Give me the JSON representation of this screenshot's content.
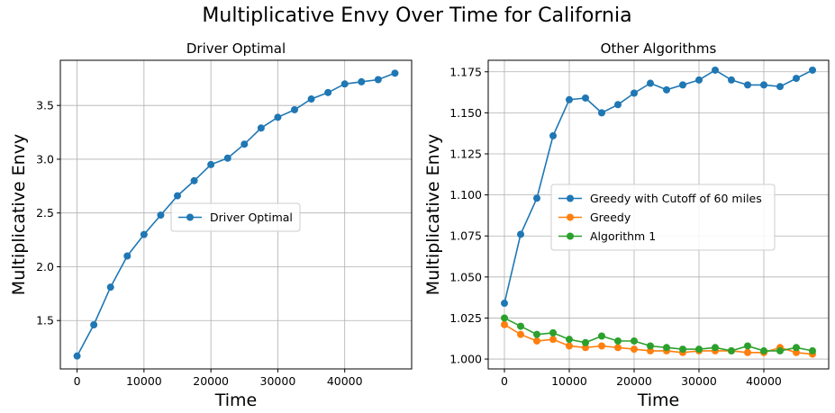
{
  "figure": {
    "title": "Multiplicative Envy Over Time for California"
  },
  "chart_data": [
    {
      "type": "line",
      "title": "Driver Optimal",
      "xlabel": "Time",
      "ylabel": "Multiplicative Envy",
      "xlim": [
        -2500,
        50000
      ],
      "ylim": [
        1.05,
        3.92
      ],
      "xticks": [
        0,
        10000,
        20000,
        30000,
        40000
      ],
      "yticks": [
        1.5,
        2.0,
        2.5,
        3.0,
        3.5
      ],
      "xtick_labels": [
        "0",
        "10000",
        "20000",
        "30000",
        "40000"
      ],
      "ytick_labels": [
        "1.5",
        "2.0",
        "2.5",
        "3.0",
        "3.5"
      ],
      "grid": true,
      "legend_position": "center-right",
      "x": [
        0,
        2500,
        5000,
        7500,
        10000,
        12500,
        15000,
        17500,
        20000,
        22500,
        25000,
        27500,
        30000,
        32500,
        35000,
        37500,
        40000,
        42500,
        45000,
        47500
      ],
      "series": [
        {
          "name": "Driver Optimal",
          "color": "#1f77b4",
          "values": [
            1.17,
            1.46,
            1.81,
            2.1,
            2.3,
            2.48,
            2.66,
            2.8,
            2.95,
            3.01,
            3.14,
            3.29,
            3.39,
            3.46,
            3.56,
            3.62,
            3.7,
            3.72,
            3.74,
            3.8
          ]
        }
      ]
    },
    {
      "type": "line",
      "title": "Other Algorithms",
      "xlabel": "Time",
      "ylabel": "Multiplicative Envy",
      "xlim": [
        -2500,
        50000
      ],
      "ylim": [
        0.994,
        1.182
      ],
      "xticks": [
        0,
        10000,
        20000,
        30000,
        40000
      ],
      "yticks": [
        1.0,
        1.025,
        1.05,
        1.075,
        1.1,
        1.125,
        1.15,
        1.175
      ],
      "xtick_labels": [
        "0",
        "10000",
        "20000",
        "30000",
        "40000"
      ],
      "ytick_labels": [
        "1.000",
        "1.025",
        "1.050",
        "1.075",
        "1.100",
        "1.125",
        "1.150",
        "1.175"
      ],
      "grid": true,
      "legend_position": "center-right",
      "x": [
        0,
        2500,
        5000,
        7500,
        10000,
        12500,
        15000,
        17500,
        20000,
        22500,
        25000,
        27500,
        30000,
        32500,
        35000,
        37500,
        40000,
        42500,
        45000,
        47500
      ],
      "series": [
        {
          "name": "Greedy with Cutoff of 60 miles",
          "color": "#1f77b4",
          "values": [
            1.034,
            1.076,
            1.098,
            1.136,
            1.158,
            1.159,
            1.15,
            1.155,
            1.162,
            1.168,
            1.164,
            1.167,
            1.17,
            1.176,
            1.17,
            1.167,
            1.167,
            1.166,
            1.171,
            1.176
          ]
        },
        {
          "name": "Greedy",
          "color": "#ff7f0e",
          "values": [
            1.021,
            1.015,
            1.011,
            1.012,
            1.008,
            1.007,
            1.008,
            1.007,
            1.006,
            1.005,
            1.005,
            1.004,
            1.005,
            1.005,
            1.005,
            1.004,
            1.004,
            1.007,
            1.004,
            1.003
          ]
        },
        {
          "name": "Algorithm 1",
          "color": "#2ca02c",
          "values": [
            1.025,
            1.02,
            1.015,
            1.016,
            1.012,
            1.01,
            1.014,
            1.011,
            1.011,
            1.008,
            1.007,
            1.006,
            1.006,
            1.007,
            1.005,
            1.008,
            1.005,
            1.005,
            1.007,
            1.005
          ]
        }
      ]
    }
  ]
}
